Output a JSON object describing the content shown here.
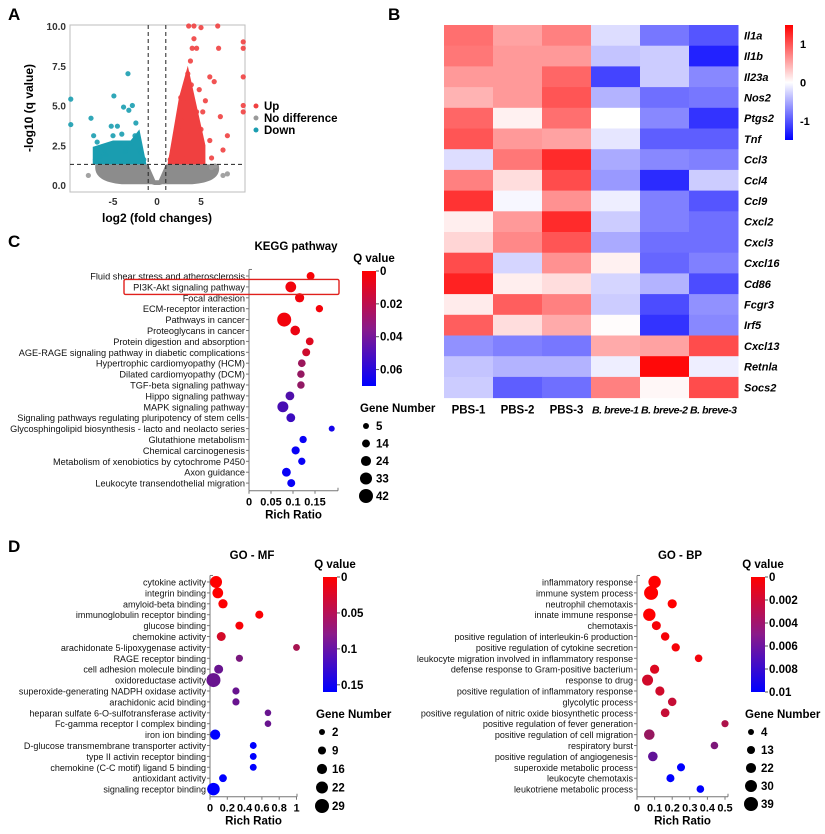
{
  "figure": {
    "panel_letters": [
      "A",
      "B",
      "C",
      "D"
    ]
  },
  "chart_data": [
    {
      "id": "volcano",
      "type": "scatter",
      "panel": "A",
      "title": "",
      "xlabel": "log2 (fold changes)",
      "ylabel": "-log10 (q value)",
      "xlim": [
        -10,
        10
      ],
      "ylim": [
        0,
        10
      ],
      "xticks": [
        "-5",
        "0",
        "5"
      ],
      "xtick_values": [
        -5,
        0,
        5
      ],
      "yticks": [
        "0.0",
        "2.5",
        "5.0",
        "7.5",
        "10.0"
      ],
      "ytick_values": [
        0,
        2.5,
        5,
        7.5,
        10
      ],
      "thresholds": {
        "log2fc": [
          -1,
          1
        ],
        "neglog10q": 1.3
      },
      "legend": [
        {
          "label": "Up",
          "color": "#f04040"
        },
        {
          "label": "No difference",
          "color": "#999999"
        },
        {
          "label": "Down",
          "color": "#1a9db0"
        }
      ],
      "legend_position": "right",
      "series": [
        {
          "name": "Up",
          "color": "#f04040",
          "points": [
            [
              1.5,
              1.6
            ],
            [
              2,
              2.2
            ],
            [
              2.5,
              3.1
            ],
            [
              2.8,
              4
            ],
            [
              3,
              5.2
            ],
            [
              3.2,
              6
            ],
            [
              3.5,
              7
            ],
            [
              3.8,
              7.8
            ],
            [
              4,
              8.6
            ],
            [
              4.2,
              9.2
            ],
            [
              4.5,
              8.6
            ],
            [
              3.6,
              10
            ],
            [
              4.2,
              10
            ],
            [
              5,
              9.9
            ],
            [
              6.9,
              10
            ],
            [
              7,
              8.6
            ],
            [
              6.5,
              6.5
            ],
            [
              6,
              6.8
            ],
            [
              5.5,
              5.3
            ],
            [
              7.2,
              4.3
            ],
            [
              8,
              3.1
            ],
            [
              7.5,
              2.2
            ],
            [
              6,
              2.8
            ],
            [
              5,
              3.5
            ],
            [
              4.5,
              4.6
            ],
            [
              3.3,
              3.3
            ],
            [
              2.2,
              2.7
            ],
            [
              1.8,
              1.8
            ],
            [
              3.9,
              6.3
            ],
            [
              4.8,
              6
            ],
            [
              2.7,
              5.5
            ],
            [
              3.1,
              4.3
            ],
            [
              2.4,
              3.6
            ],
            [
              4.1,
              5
            ],
            [
              5.2,
              4.6
            ],
            [
              4.7,
              2.6
            ],
            [
              3.4,
              2
            ],
            [
              2.9,
              1.7
            ],
            [
              6.2,
              1.7
            ],
            [
              9.8,
              9
            ],
            [
              9.8,
              8.6
            ],
            [
              9.8,
              6.8
            ],
            [
              9.8,
              5
            ],
            [
              9.8,
              4.6
            ]
          ]
        },
        {
          "name": "Down",
          "color": "#1a9db0",
          "points": [
            [
              -1.5,
              1.6
            ],
            [
              -2,
              2.2
            ],
            [
              -2.5,
              3.1
            ],
            [
              -3,
              2.6
            ],
            [
              -3.5,
              2.3
            ],
            [
              -4,
              3.2
            ],
            [
              -4.5,
              3.7
            ],
            [
              -5,
              3.1
            ],
            [
              -5.5,
              2.5
            ],
            [
              -6,
              2.2
            ],
            [
              -6.5,
              1.8
            ],
            [
              -7,
              1.6
            ],
            [
              -7.5,
              4.2
            ],
            [
              -7.2,
              3.1
            ],
            [
              -6.8,
              2.7
            ],
            [
              -5.2,
              3.7
            ],
            [
              -4.2,
              2.6
            ],
            [
              -3.3,
              7
            ],
            [
              -3.8,
              4.9
            ],
            [
              -3.2,
              4.7
            ],
            [
              -2.8,
              5
            ],
            [
              -4.9,
              5.6
            ],
            [
              -2.4,
              3.9
            ],
            [
              -2.2,
              2.9
            ],
            [
              -1.8,
              2
            ],
            [
              -3.6,
              2.1
            ],
            [
              -5.8,
              1.9
            ],
            [
              -6.2,
              2.4
            ],
            [
              -9.8,
              5.4
            ],
            [
              -9.8,
              3.8
            ]
          ]
        },
        {
          "name": "No difference",
          "color": "#999999",
          "points": [
            [
              -7.8,
              0.6
            ],
            [
              7.5,
              0.6
            ],
            [
              8,
              0.7
            ],
            [
              6.2,
              1.1
            ],
            [
              6.6,
              1.2
            ]
          ]
        }
      ]
    },
    {
      "id": "heatmap",
      "type": "heatmap",
      "panel": "B",
      "columns": [
        "PBS-1",
        "PBS-2",
        "PBS-3",
        "B. breve-1",
        "B. breve-2",
        "B. breve-3"
      ],
      "rows": [
        "Il1a",
        "Il1b",
        "Il23a",
        "Nos2",
        "Ptgs2",
        "Tnf",
        "Ccl3",
        "Ccl4",
        "Ccl9",
        "Cxcl2",
        "Cxcl3",
        "Cxcl16",
        "Cd86",
        "Fcgr3",
        "Irf5",
        "Cxcl13",
        "Retnla",
        "Socs2"
      ],
      "values": [
        [
          0.85,
          0.55,
          0.75,
          -0.2,
          -0.8,
          -1.0
        ],
        [
          0.8,
          0.6,
          0.6,
          -0.35,
          -0.3,
          -1.3
        ],
        [
          0.6,
          0.6,
          0.9,
          -1.1,
          -0.3,
          -0.7
        ],
        [
          0.45,
          0.6,
          1.0,
          -0.45,
          -0.85,
          -0.8
        ],
        [
          0.9,
          0.08,
          0.85,
          0.0,
          -0.7,
          -1.2
        ],
        [
          1.0,
          0.6,
          0.55,
          -0.15,
          -0.95,
          -0.95
        ],
        [
          -0.2,
          0.8,
          1.25,
          -0.5,
          -0.7,
          -0.75
        ],
        [
          0.75,
          0.2,
          1.05,
          -0.6,
          -1.25,
          -0.3
        ],
        [
          1.2,
          -0.05,
          0.65,
          -0.1,
          -0.75,
          -1.0
        ],
        [
          0.1,
          0.6,
          1.25,
          -0.3,
          -0.75,
          -0.85
        ],
        [
          0.25,
          0.7,
          1.0,
          -0.5,
          -0.85,
          -0.85
        ],
        [
          1.05,
          -0.25,
          0.65,
          0.08,
          -0.9,
          -0.75
        ],
        [
          1.3,
          0.1,
          0.2,
          -0.25,
          -0.45,
          -1.05
        ],
        [
          0.12,
          0.95,
          0.75,
          -0.3,
          -1.05,
          -0.65
        ],
        [
          0.95,
          0.2,
          0.5,
          0.02,
          -1.2,
          -0.7
        ],
        [
          -0.65,
          -0.75,
          -0.8,
          0.5,
          0.55,
          1.05
        ],
        [
          -0.35,
          -0.45,
          -0.45,
          -0.1,
          1.45,
          -0.1
        ],
        [
          -0.3,
          -0.95,
          -0.85,
          0.75,
          0.05,
          1.05
        ]
      ],
      "colorbar": {
        "ticks": [
          "1",
          "0",
          "-1"
        ],
        "tick_values": [
          1,
          0,
          -1
        ],
        "range": [
          -1.5,
          1.5
        ],
        "low_color": "#0000ff",
        "mid_color": "#ffffff",
        "high_color": "#ff0000"
      }
    },
    {
      "id": "kegg",
      "type": "scatter",
      "panel": "C",
      "title": "KEGG pathway",
      "xlabel": "Rich Ratio",
      "ylabel": "",
      "xlim": [
        0,
        0.2
      ],
      "xticks": [
        "0",
        "0.05",
        "0.1",
        "0.15"
      ],
      "xtick_values": [
        0,
        0.05,
        0.1,
        0.15
      ],
      "highlighted_category": "PI3K-Akt signaling pathway",
      "colorbar": {
        "title": "Q value",
        "ticks": [
          "0",
          "0.02",
          "0.04",
          "0.06"
        ],
        "tick_values": [
          0,
          0.02,
          0.04,
          0.06
        ],
        "range": [
          0,
          0.07
        ],
        "low_color": "#ff0000",
        "high_color": "#0000ff"
      },
      "size_legend": {
        "title": "Gene Number",
        "values": [
          5,
          14,
          24,
          33,
          42
        ]
      },
      "categories": [
        "Fluid shear stress and atherosclerosis",
        "PI3K-Akt signaling pathway",
        "Focal adhesion",
        "ECM-receptor interaction",
        "Pathways in cancer",
        "Proteoglycans in cancer",
        "Protein digestion and absorption",
        "AGE-RAGE signaling pathway in diabetic complications",
        "Hypertrophic cardiomyopathy (HCM)",
        "Dilated cardiomyopathy (DCM)",
        "TGF-beta signaling pathway",
        "Hippo signaling pathway",
        "MAPK signaling pathway",
        "Signaling pathways regulating pluripotency of stem cells",
        "Glycosphingolipid biosynthesis - lacto and neolacto series",
        "Glutathione metabolism",
        "Chemical carcinogenesis",
        "Metabolism of xenobiotics by cytochrome P450",
        "Axon guidance",
        "Leukocyte transendothelial migration"
      ],
      "rich_ratio": [
        0.14,
        0.095,
        0.115,
        0.16,
        0.08,
        0.105,
        0.138,
        0.13,
        0.12,
        0.118,
        0.118,
        0.093,
        0.077,
        0.095,
        0.188,
        0.123,
        0.106,
        0.12,
        0.085,
        0.096
      ],
      "q_value": [
        0.002,
        0.004,
        0.004,
        0.003,
        0.004,
        0.006,
        0.01,
        0.015,
        0.03,
        0.032,
        0.033,
        0.05,
        0.052,
        0.055,
        0.065,
        0.068,
        0.068,
        0.068,
        0.068,
        0.068
      ],
      "gene_number": [
        14,
        27,
        20,
        11,
        42,
        22,
        13,
        14,
        13,
        12,
        12,
        18,
        28,
        18,
        5,
        11,
        15,
        11,
        18,
        14
      ]
    },
    {
      "id": "go-mf",
      "type": "scatter",
      "panel": "D",
      "title": "GO - MF",
      "xlabel": "Rich Ratio",
      "ylabel": "",
      "xlim": [
        0,
        1
      ],
      "xticks": [
        "0",
        "0.2",
        "0.4",
        "0.6",
        "0.8",
        "1"
      ],
      "xtick_values": [
        0,
        0.2,
        0.4,
        0.6,
        0.8,
        1
      ],
      "colorbar": {
        "title": "Q value",
        "ticks": [
          "0",
          "0.05",
          "0.1",
          "0.15"
        ],
        "tick_values": [
          0,
          0.05,
          0.1,
          0.15
        ],
        "range": [
          0,
          0.16
        ],
        "low_color": "#ff0000",
        "high_color": "#0000ff"
      },
      "size_legend": {
        "title": "Gene Number",
        "values": [
          2,
          9,
          16,
          22,
          29
        ]
      },
      "categories": [
        "cytokine activity",
        "integrin binding",
        "amyloid-beta binding",
        "immunoglobulin receptor binding",
        "glucose binding",
        "chemokine activity",
        "arachidonate 5-lipoxygenase activity",
        "RAGE receptor binding",
        "cell adhesion molecule binding",
        "oxidoreductase activity",
        "superoxide-generating NADPH oxidase activity",
        "arachidonic acid binding",
        "heparan sulfate 6-O-sulfotransferase activity",
        "Fc-gamma receptor I complex binding",
        "iron ion binding",
        "D-glucose transmembrane transporter activity",
        "type II activin receptor binding",
        "chemokine (C-C motif) ligand 5 binding",
        "antioxidant activity",
        "signaling receptor binding"
      ],
      "rich_ratio": [
        0.07,
        0.09,
        0.15,
        0.57,
        0.34,
        0.13,
        1.0,
        0.34,
        0.1,
        0.04,
        0.3,
        0.3,
        0.67,
        0.67,
        0.06,
        0.5,
        0.5,
        0.5,
        0.15,
        0.04
      ],
      "q_value": [
        0.0,
        0.0,
        0.002,
        0.003,
        0.005,
        0.03,
        0.06,
        0.09,
        0.1,
        0.1,
        0.1,
        0.1,
        0.1,
        0.1,
        0.16,
        0.16,
        0.16,
        0.16,
        0.16,
        0.16
      ],
      "gene_number": [
        22,
        18,
        13,
        9,
        9,
        12,
        5,
        6,
        12,
        29,
        6,
        6,
        4,
        4,
        16,
        5,
        5,
        5,
        8,
        24
      ]
    },
    {
      "id": "go-bp",
      "type": "scatter",
      "panel": "D",
      "title": "GO - BP",
      "xlabel": "Rich Ratio",
      "ylabel": "",
      "xlim": [
        0,
        0.55
      ],
      "xticks": [
        "0",
        "0.1",
        "0.2",
        "0.3",
        "0.4",
        "0.5"
      ],
      "xtick_values": [
        0,
        0.1,
        0.2,
        0.3,
        0.4,
        0.5
      ],
      "colorbar": {
        "title": "Q value",
        "ticks": [
          "0",
          "0.002",
          "0.004",
          "0.006",
          "0.008",
          "0.01"
        ],
        "tick_values": [
          0,
          0.002,
          0.004,
          0.006,
          0.008,
          0.01
        ],
        "range": [
          0,
          0.01
        ],
        "low_color": "#ff0000",
        "high_color": "#0000ff"
      },
      "size_legend": {
        "title": "Gene Number",
        "values": [
          4,
          13,
          22,
          30,
          39
        ]
      },
      "categories": [
        "inflammatory response",
        "immune system process",
        "neutrophil chemotaxis",
        "innate immune response",
        "chemotaxis",
        "positive regulation of interleukin-6 production",
        "positive regulation of cytokine secretion",
        "leukocyte migration involved in inflammatory response",
        "defense response to Gram-positive bacterium",
        "response to drug",
        "positive regulation of inflammatory response",
        "glycolytic process",
        "positive regulation of nitric oxide biosynthetic process",
        "positive regulation of fever generation",
        "positive regulation of cell migration",
        "respiratory burst",
        "positive regulation of angiogenesis",
        "superoxide metabolic process",
        "leukocyte chemotaxis",
        "leukotriene metabolic process"
      ],
      "rich_ratio": [
        0.1,
        0.08,
        0.2,
        0.07,
        0.11,
        0.16,
        0.22,
        0.35,
        0.1,
        0.06,
        0.13,
        0.2,
        0.16,
        0.5,
        0.07,
        0.44,
        0.09,
        0.25,
        0.19,
        0.36
      ],
      "q_value": [
        0.0,
        0.0,
        0.0,
        0.0,
        0.0004,
        0.0004,
        0.0004,
        0.0005,
        0.0015,
        0.002,
        0.002,
        0.0025,
        0.0025,
        0.0035,
        0.0045,
        0.0055,
        0.0065,
        0.01,
        0.01,
        0.01
      ],
      "gene_number": [
        32,
        39,
        18,
        32,
        17,
        15,
        14,
        11,
        18,
        26,
        18,
        15,
        16,
        9,
        24,
        11,
        20,
        13,
        13,
        11
      ]
    }
  ]
}
